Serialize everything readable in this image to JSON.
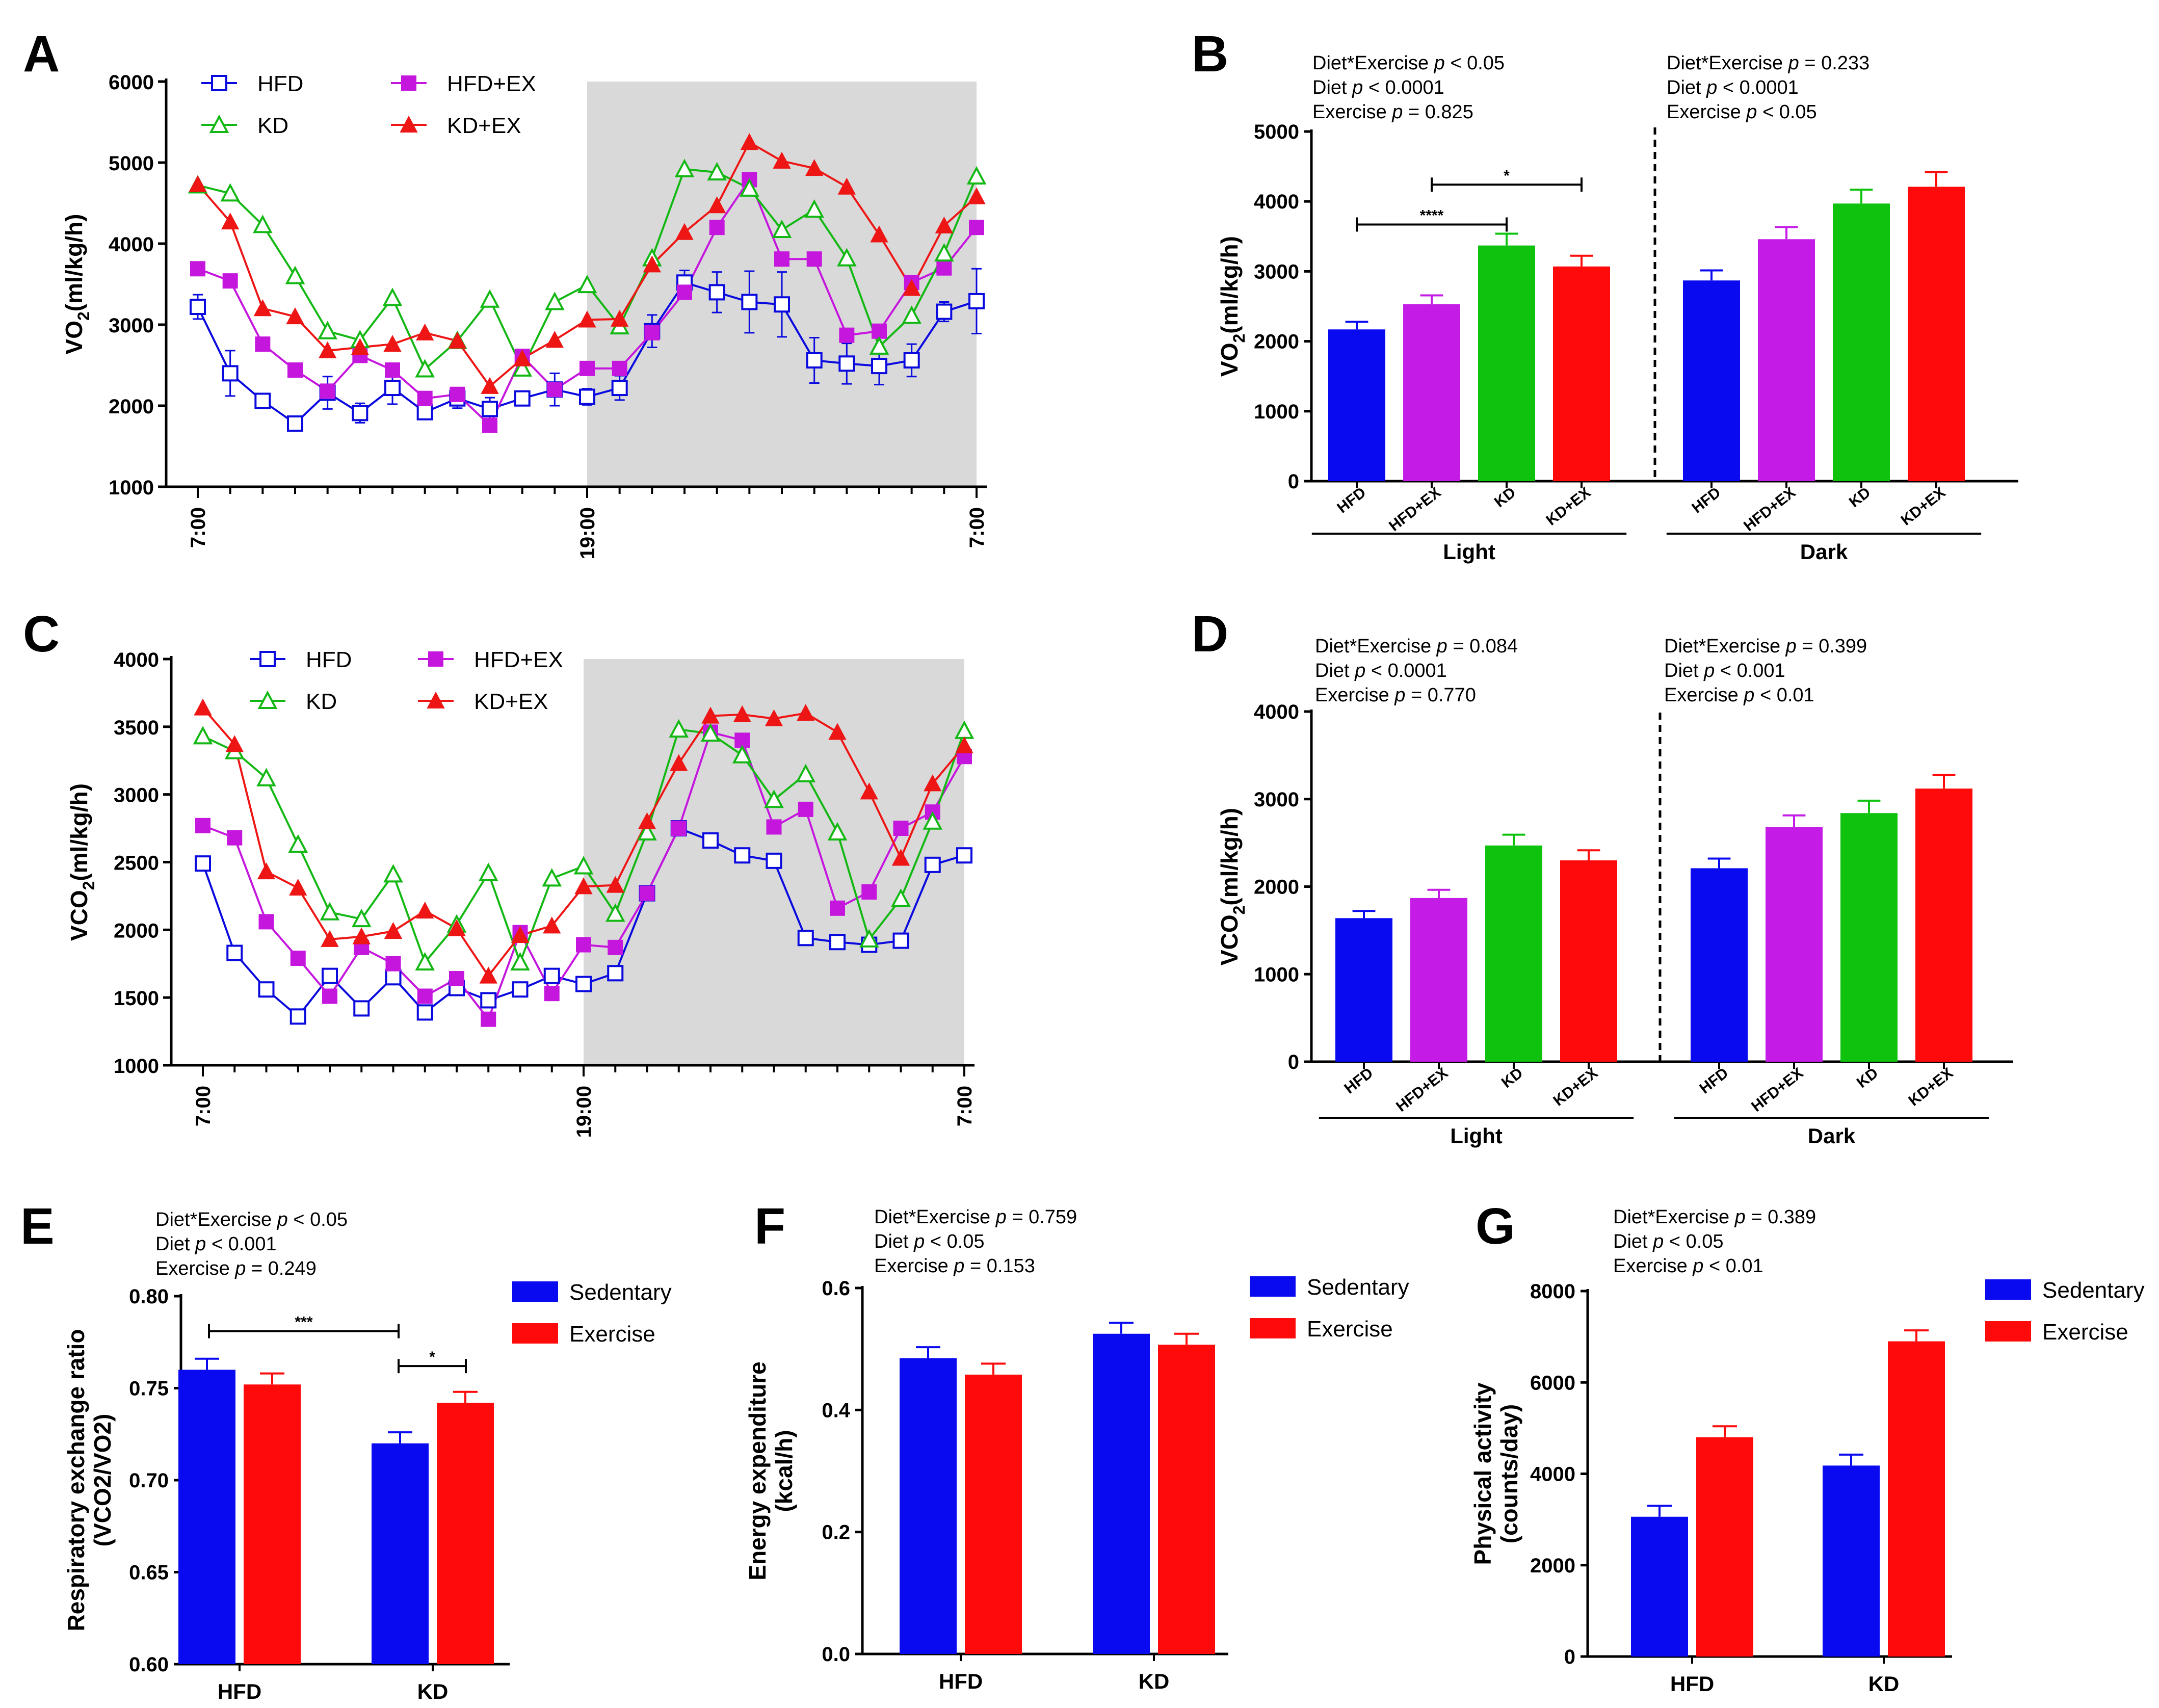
{
  "chart_data": [
    {
      "panel": "A",
      "type": "line",
      "ylabel": "VO",
      "ylabel_sub": "2",
      "ylabel_tail": "(ml/kg/h)",
      "ylim": [
        1000,
        6000
      ],
      "yticks": [
        1000,
        2000,
        3000,
        4000,
        5000,
        6000
      ],
      "xtick_labels": [
        "7:00",
        "19:00",
        "7:00"
      ],
      "shaded_from_point": 12,
      "series": [
        {
          "name": "HFD",
          "marker": "open-square",
          "color": "#0a0adf",
          "values": [
            3220,
            2400,
            2060,
            1780,
            2160,
            1910,
            2220,
            1920,
            2090,
            1960,
            2090,
            2200,
            2110,
            2220,
            2920,
            3520,
            3400,
            3280,
            3250,
            2560,
            2520,
            2490,
            2560,
            3160,
            3290
          ],
          "errors": [
            150,
            280,
            80,
            60,
            200,
            120,
            200,
            80,
            120,
            140,
            60,
            200,
            100,
            150,
            200,
            150,
            250,
            380,
            400,
            280,
            250,
            230,
            200,
            120,
            400
          ]
        },
        {
          "name": "HFD+EX",
          "marker": "filled-square",
          "color": "#c516de",
          "values": [
            3690,
            3540,
            2760,
            2440,
            2180,
            2620,
            2440,
            2090,
            2140,
            1760,
            2610,
            2200,
            2460,
            2460,
            2900,
            3400,
            4200,
            4790,
            3810,
            3810,
            2870,
            2920,
            3520,
            3700,
            4200
          ]
        },
        {
          "name": "KD",
          "marker": "open-triangle",
          "color": "#14b814",
          "values": [
            4720,
            4620,
            4230,
            3600,
            2920,
            2810,
            3330,
            2450,
            2800,
            3310,
            2460,
            3280,
            3490,
            2980,
            3820,
            4920,
            4880,
            4680,
            4170,
            4420,
            3820,
            2730,
            3110,
            3880,
            4830
          ]
        },
        {
          "name": "KD+EX",
          "marker": "filled-triangle",
          "color": "#ee1515",
          "values": [
            4730,
            4270,
            3200,
            3100,
            2680,
            2720,
            2760,
            2900,
            2800,
            2240,
            2580,
            2810,
            3060,
            3070,
            3740,
            4140,
            4470,
            5250,
            5020,
            4930,
            4700,
            4110,
            3450,
            4220,
            4580
          ]
        }
      ]
    },
    {
      "panel": "B",
      "type": "bar",
      "ylabel": "VO",
      "ylabel_sub": "2",
      "ylabel_tail": "(ml/kg/h)",
      "ylim": [
        0,
        5000
      ],
      "yticks": [
        0,
        1000,
        2000,
        3000,
        4000,
        5000
      ],
      "groups": [
        "Light",
        "Dark"
      ],
      "categories": [
        "HFD",
        "HFD+EX",
        "KD",
        "KD+EX"
      ],
      "light_values": [
        2170,
        2530,
        3370,
        3070
      ],
      "dark_values": [
        2870,
        3460,
        3970,
        4210
      ],
      "stats_light": [
        [
          "Diet*Exercise ",
          "p",
          " < 0.05"
        ],
        [
          "Diet ",
          "p",
          " < 0.0001"
        ],
        [
          "Exercise ",
          "p",
          " = 0.825"
        ]
      ],
      "stats_dark": [
        [
          "Diet*Exercise ",
          "p",
          " = 0.233"
        ],
        [
          "Diet ",
          "p",
          " < 0.0001"
        ],
        [
          "Exercise ",
          "p",
          " < 0.05"
        ]
      ],
      "significance": [
        "****",
        "*"
      ]
    },
    {
      "panel": "C",
      "type": "line",
      "ylabel": "VCO",
      "ylabel_sub": "2",
      "ylabel_tail": "(ml/kg/h)",
      "ylim": [
        1000,
        4000
      ],
      "yticks": [
        1000,
        1500,
        2000,
        2500,
        3000,
        3500,
        4000
      ],
      "xtick_labels": [
        "7:00",
        "19:00",
        "7:00"
      ],
      "shaded_from_point": 12,
      "series": [
        {
          "name": "HFD",
          "marker": "open-square",
          "color": "#0a0adf",
          "values": [
            2490,
            1830,
            1560,
            1360,
            1660,
            1420,
            1650,
            1390,
            1570,
            1480,
            1560,
            1660,
            1600,
            1680,
            2270,
            2750,
            2660,
            2550,
            2510,
            1940,
            1910,
            1890,
            1920,
            2480,
            2550
          ]
        },
        {
          "name": "HFD+EX",
          "marker": "filled-square",
          "color": "#c516de",
          "values": [
            2770,
            2680,
            2060,
            1790,
            1510,
            1870,
            1750,
            1510,
            1640,
            1340,
            1980,
            1530,
            1890,
            1870,
            2270,
            2750,
            3460,
            3400,
            2760,
            2890,
            2160,
            2280,
            2750,
            2870,
            3280
          ]
        },
        {
          "name": "KD",
          "marker": "open-triangle",
          "color": "#14b814",
          "values": [
            3430,
            3320,
            3120,
            2630,
            2130,
            2080,
            2410,
            1760,
            2040,
            2420,
            1760,
            2380,
            2470,
            2120,
            2720,
            3480,
            3450,
            3290,
            2960,
            3150,
            2720,
            1930,
            2230,
            2800,
            3470
          ]
        },
        {
          "name": "KD+EX",
          "marker": "filled-triangle",
          "color": "#ee1515",
          "values": [
            3640,
            3370,
            2430,
            2310,
            1930,
            1950,
            1990,
            2140,
            2010,
            1660,
            1960,
            2030,
            2320,
            2330,
            2800,
            3230,
            3580,
            3590,
            3560,
            3600,
            3460,
            3020,
            2530,
            3080,
            3360
          ]
        }
      ]
    },
    {
      "panel": "D",
      "type": "bar",
      "ylabel": "VCO",
      "ylabel_sub": "2",
      "ylabel_tail": "(ml/kg/h)",
      "ylim": [
        0,
        4000
      ],
      "yticks": [
        0,
        1000,
        2000,
        3000,
        4000
      ],
      "groups": [
        "Light",
        "Dark"
      ],
      "categories": [
        "HFD",
        "HFD+EX",
        "KD",
        "KD+EX"
      ],
      "light_values": [
        1640,
        1870,
        2470,
        2300
      ],
      "dark_values": [
        2210,
        2680,
        2840,
        3120
      ],
      "stats_light": [
        [
          "Diet*Exercise ",
          "p",
          " = 0.084"
        ],
        [
          "Diet ",
          "p",
          " < 0.0001"
        ],
        [
          "Exercise ",
          "p",
          " = 0.770"
        ]
      ],
      "stats_dark": [
        [
          "Diet*Exercise ",
          "p",
          " = 0.399"
        ],
        [
          "Diet ",
          "p",
          " < 0.001"
        ],
        [
          "Exercise ",
          "p",
          " < 0.01"
        ]
      ]
    },
    {
      "panel": "E",
      "type": "bar",
      "ylabel_line1": "Respiratory exchange ratio",
      "ylabel_line2": "(VCO2/VO2)",
      "ylim": [
        0.6,
        0.8
      ],
      "yticks": [
        "0.60",
        "0.65",
        "0.70",
        "0.75",
        "0.80"
      ],
      "categories": [
        "HFD",
        "KD"
      ],
      "series": [
        {
          "name": "Sedentary",
          "color": "#0a0af0",
          "values": [
            0.76,
            0.72
          ]
        },
        {
          "name": "Exercise",
          "color": "#ff0a0a",
          "values": [
            0.752,
            0.742
          ]
        }
      ],
      "stats": [
        [
          "Diet*Exercise ",
          "p",
          " < 0.05"
        ],
        [
          "Diet ",
          "p",
          " < 0.001"
        ],
        [
          "Exercise ",
          "p",
          " = 0.249"
        ]
      ],
      "significance": [
        "***",
        "*"
      ]
    },
    {
      "panel": "F",
      "type": "bar",
      "ylabel_line1": "Energy expenditure",
      "ylabel_line2": "(kcal/h)",
      "ylim": [
        0,
        0.6
      ],
      "yticks": [
        "0.0",
        "0.2",
        "0.4",
        "0.6"
      ],
      "categories": [
        "HFD",
        "KD"
      ],
      "series": [
        {
          "name": "Sedentary",
          "color": "#0a0af0",
          "values": [
            0.485,
            0.525
          ]
        },
        {
          "name": "Exercise",
          "color": "#ff0a0a",
          "values": [
            0.458,
            0.507
          ]
        }
      ],
      "stats": [
        [
          "Diet*Exercise ",
          "p",
          " = 0.759"
        ],
        [
          "Diet ",
          "p",
          " < 0.05"
        ],
        [
          "Exercise ",
          "p",
          " = 0.153"
        ]
      ]
    },
    {
      "panel": "G",
      "type": "bar",
      "ylabel_line1": "Physical activity",
      "ylabel_line2": "(counts/day)",
      "ylim": [
        0,
        8000
      ],
      "yticks": [
        "0",
        "2000",
        "4000",
        "6000",
        "8000"
      ],
      "categories": [
        "HFD",
        "KD"
      ],
      "series": [
        {
          "name": "Sedentary",
          "color": "#0a0af0",
          "values": [
            3060,
            4180
          ]
        },
        {
          "name": "Exercise",
          "color": "#ff0a0a",
          "values": [
            4800,
            6900
          ]
        }
      ],
      "stats": [
        [
          "Diet*Exercise ",
          "p",
          " = 0.389"
        ],
        [
          "Diet ",
          "p",
          " < 0.05"
        ],
        [
          "Exercise ",
          "p",
          " < 0.01"
        ]
      ]
    }
  ]
}
